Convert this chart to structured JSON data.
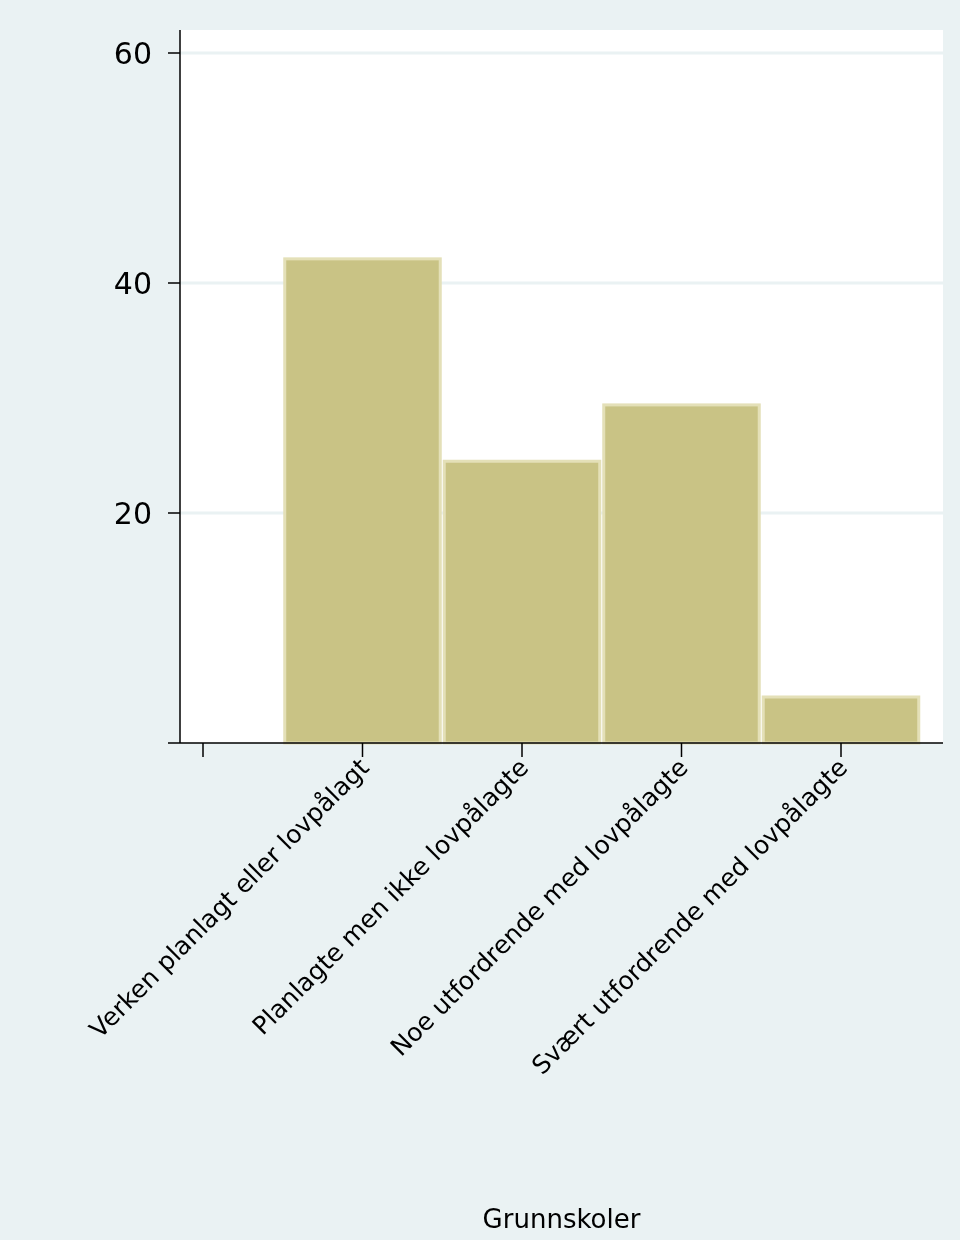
{
  "chart_data": {
    "type": "bar",
    "xlabel": "Grunnskoler",
    "categories": [
      null,
      "Verken planlagt eller lovpålagt",
      "Planlagte men ikke lovpålagte",
      "Noe utfordrende med lovpålagte",
      "Svært utfordrende med lovpålagte"
    ],
    "values": [
      null,
      42.1,
      24.5,
      29.4,
      4.0
    ],
    "color": "#c9c385",
    "ylim": [
      0,
      62
    ],
    "yticks": [
      {
        "value": 0,
        "label": null
      },
      20,
      40,
      60
    ],
    "grid": "y"
  }
}
